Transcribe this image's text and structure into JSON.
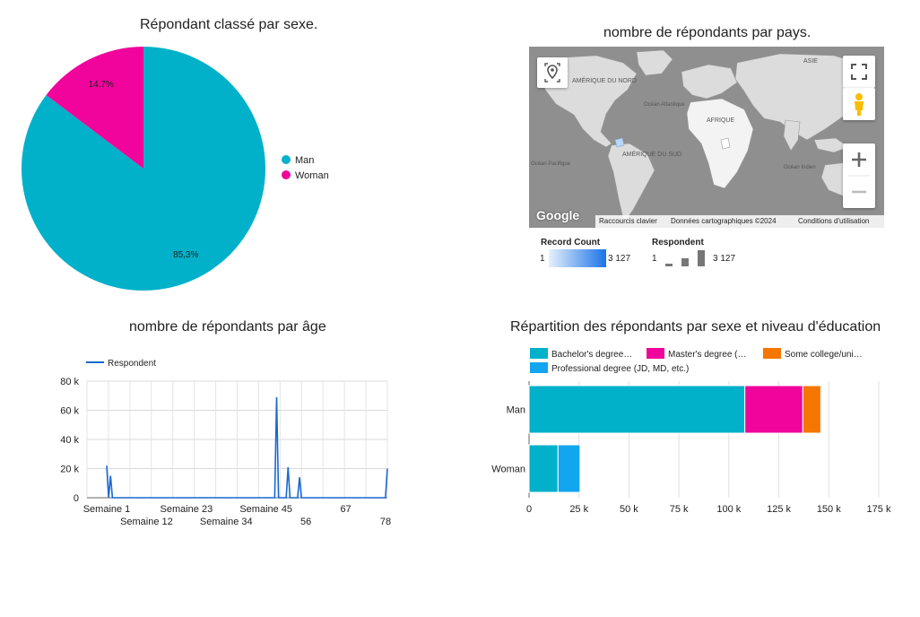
{
  "colors": {
    "teal": "#00b1c9",
    "magenta": "#f0049c",
    "orange": "#f57600",
    "sky": "#12a5f0",
    "line_blue": "#1967d2",
    "map_gray": "#8f8f8f",
    "map_land": "#dcdcdc"
  },
  "pie": {
    "title": "Répondant classé par sexe.",
    "legend": [
      "Man",
      "Woman"
    ]
  },
  "map": {
    "title": "nombre de répondants par pays.",
    "labels": {
      "na": "AMÉRIQUE DU NORD",
      "sa": "AMÉRIQUE DU SUD",
      "af": "AFRIQUE",
      "asia": "ASIE",
      "atl": "Océan Atlantique",
      "pac": "Océan Pacifique",
      "ind": "Océan Indien"
    },
    "footer": {
      "logo": "Google",
      "shortcuts": "Raccourcis clavier",
      "copyright": "Données cartographiques ©2024",
      "terms": "Conditions d'utilisation"
    },
    "icons": [
      "location-icon",
      "fullscreen-icon",
      "pegman-icon",
      "zoom-in-icon",
      "zoom-out-icon"
    ],
    "legend": {
      "record_count_title": "Record Count",
      "record_count_min": "1",
      "record_count_max": "3 127",
      "respondent_title": "Respondent",
      "respondent_min": "1",
      "respondent_max": "3 127"
    }
  },
  "chart_data": [
    {
      "type": "pie",
      "title": "Répondant classé par sexe.",
      "categories": [
        "Man",
        "Woman"
      ],
      "values": [
        85.3,
        14.7
      ],
      "labels": [
        "85,3%",
        "14,7%"
      ],
      "legend_position": "right"
    },
    {
      "type": "line",
      "title": "nombre de répondants par âge",
      "series": [
        {
          "name": "Respondent",
          "values": [
            22000,
            0,
            15000,
            0,
            0,
            0,
            0,
            0,
            0,
            0,
            0,
            0,
            0,
            0,
            0,
            0,
            0,
            0,
            0,
            0,
            0,
            0,
            0,
            0,
            0,
            0,
            0,
            0,
            0,
            0,
            0,
            0,
            0,
            0,
            0,
            0,
            0,
            0,
            0,
            0,
            0,
            0,
            0,
            0,
            0,
            0,
            0,
            0,
            0,
            0,
            0,
            0,
            0,
            0,
            0,
            0,
            0,
            0,
            0,
            0,
            0,
            0,
            0,
            0,
            0,
            0,
            0,
            0,
            0,
            0,
            0,
            0,
            0,
            0,
            0,
            0,
            0,
            0,
            0,
            0,
            0,
            0,
            0,
            0,
            0,
            0,
            0,
            0,
            0,
            69000,
            0,
            0,
            0,
            0,
            0,
            21000,
            0,
            0,
            0,
            0,
            0,
            14000,
            0,
            0,
            0,
            0,
            0,
            0,
            0,
            0,
            0,
            0,
            0,
            0,
            0,
            0,
            0,
            0,
            0,
            0,
            0,
            0,
            0,
            0,
            0,
            0,
            0,
            0,
            0,
            0,
            0,
            0,
            0,
            0,
            0,
            0,
            0,
            0,
            0,
            0,
            0,
            0,
            0,
            0,
            0,
            0,
            0,
            20000
          ]
        }
      ],
      "xticks": [
        "Semaine 1",
        "Semaine 12",
        "Semaine 23",
        "Semaine 34",
        "Semaine 45",
        "56",
        "67",
        "78"
      ],
      "yticks": [
        "0",
        "20 k",
        "40 k",
        "60 k",
        "80 k"
      ],
      "ylim": [
        0,
        80000
      ],
      "grid": true,
      "legend_position": "top-left"
    },
    {
      "type": "bar",
      "orientation": "horizontal",
      "stacked": true,
      "title": "Répartition des répondants par sexe et niveau d'éducation",
      "categories": [
        "Man",
        "Woman"
      ],
      "series": [
        {
          "name": "Bachelor's degree…",
          "values": [
            108000,
            14500
          ]
        },
        {
          "name": "Master's degree (…",
          "values": [
            29000,
            0
          ]
        },
        {
          "name": "Some college/uni…",
          "values": [
            9000,
            0
          ]
        },
        {
          "name": "Professional degree (JD, MD, etc.)",
          "values": [
            0,
            11000
          ]
        }
      ],
      "xticks": [
        "0",
        "25 k",
        "50 k",
        "75 k",
        "100 k",
        "125 k",
        "150 k",
        "175 k"
      ],
      "xlim": [
        0,
        175000
      ],
      "grid": true,
      "legend_position": "top"
    }
  ]
}
